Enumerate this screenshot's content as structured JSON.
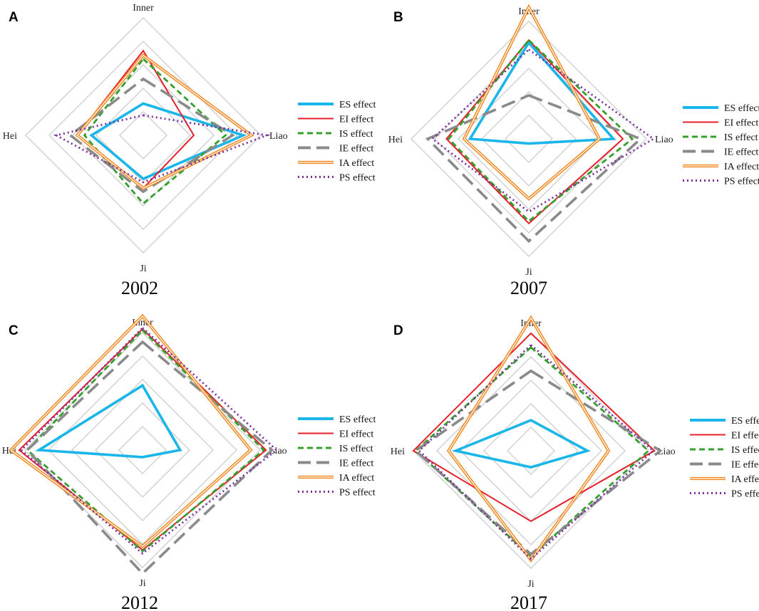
{
  "figure": {
    "axes": [
      "Inner",
      "Liao",
      "Ji",
      "Hei"
    ],
    "series_names": [
      "ES effect",
      "EI effect",
      "IS effect",
      "IE effect",
      "IA effect",
      "PS effect"
    ],
    "series_styles": [
      {
        "name": "ES effect",
        "color": "#1ab6ea",
        "dash": "",
        "double": false
      },
      {
        "name": "EI effect",
        "color": "#e8202a",
        "dash": "",
        "double": false
      },
      {
        "name": "IS effect",
        "color": "#33a02c",
        "dash": "8 5",
        "double": false
      },
      {
        "name": "IE effect",
        "color": "#8a8a8a",
        "dash": "20 9",
        "double": false
      },
      {
        "name": "IA effect",
        "color": "#f08a24",
        "dash": "",
        "double": true
      },
      {
        "name": "PS effect",
        "color": "#7b2f9e",
        "dash": "2 4",
        "double": false
      }
    ],
    "ring_count": 5,
    "grid_color": "#cfcfcf"
  },
  "chart_data": [
    {
      "type": "radar",
      "panel": "A",
      "title": "2002",
      "axes": [
        "Inner",
        "Liao",
        "Ji",
        "Hei"
      ],
      "range": [
        0,
        1
      ],
      "series": [
        {
          "name": "ES effect",
          "values": [
            0.27,
            0.85,
            0.37,
            0.44
          ]
        },
        {
          "name": "EI effect",
          "values": [
            0.72,
            0.43,
            0.45,
            0.56
          ]
        },
        {
          "name": "IS effect",
          "values": [
            0.65,
            0.7,
            0.58,
            0.5
          ]
        },
        {
          "name": "IE effect",
          "values": [
            0.48,
            0.76,
            0.48,
            0.62
          ]
        },
        {
          "name": "IA effect",
          "values": [
            0.68,
            0.92,
            0.45,
            0.56
          ]
        },
        {
          "name": "PS effect",
          "values": [
            0.17,
            1.05,
            0.4,
            0.74
          ]
        }
      ]
    },
    {
      "type": "radar",
      "panel": "B",
      "title": "2007",
      "axes": [
        "Inner",
        "Liao",
        "Ji",
        "Hei"
      ],
      "range": [
        0,
        1
      ],
      "series": [
        {
          "name": "ES effect",
          "values": [
            0.82,
            0.72,
            0.04,
            0.5
          ]
        },
        {
          "name": "EI effect",
          "values": [
            0.84,
            0.8,
            0.72,
            0.7
          ]
        },
        {
          "name": "IS effect",
          "values": [
            0.84,
            0.88,
            0.7,
            0.68
          ]
        },
        {
          "name": "IE effect",
          "values": [
            0.37,
            0.95,
            0.87,
            0.86
          ]
        },
        {
          "name": "IA effect",
          "values": [
            1.12,
            0.6,
            0.51,
            0.55
          ]
        },
        {
          "name": "PS effect",
          "values": [
            0.76,
            1.06,
            0.62,
            0.82
          ]
        }
      ]
    },
    {
      "type": "radar",
      "panel": "C",
      "title": "2012",
      "axes": [
        "Inner",
        "Liao",
        "Ji",
        "Hei"
      ],
      "range": [
        0,
        1
      ],
      "series": [
        {
          "name": "ES effect",
          "values": [
            0.55,
            0.32,
            0.06,
            0.88
          ]
        },
        {
          "name": "EI effect",
          "values": [
            1.03,
            1.05,
            0.85,
            1.05
          ]
        },
        {
          "name": "IS effect",
          "values": [
            1.02,
            1.03,
            0.86,
            0.98
          ]
        },
        {
          "name": "IE effect",
          "values": [
            0.92,
            1.1,
            1.05,
            0.98
          ]
        },
        {
          "name": "IA effect",
          "values": [
            1.14,
            0.92,
            0.82,
            1.12
          ]
        },
        {
          "name": "PS effect",
          "values": [
            1.04,
            1.14,
            0.88,
            1.03
          ]
        }
      ]
    },
    {
      "type": "radar",
      "panel": "D",
      "title": "2017",
      "axes": [
        "Inner",
        "Liao",
        "Ji",
        "Hei"
      ],
      "range": [
        0,
        1
      ],
      "series": [
        {
          "name": "ES effect",
          "values": [
            0.26,
            0.48,
            0.14,
            0.64
          ]
        },
        {
          "name": "EI effect",
          "values": [
            1.0,
            1.05,
            0.6,
            1.0
          ]
        },
        {
          "name": "IS effect",
          "values": [
            0.88,
            1.0,
            0.9,
            0.98
          ]
        },
        {
          "name": "IE effect",
          "values": [
            0.68,
            1.1,
            0.88,
            0.98
          ]
        },
        {
          "name": "IA effect",
          "values": [
            1.13,
            0.66,
            0.93,
            0.7
          ]
        },
        {
          "name": "PS effect",
          "values": [
            0.9,
            1.04,
            0.92,
            0.95
          ]
        }
      ]
    }
  ]
}
